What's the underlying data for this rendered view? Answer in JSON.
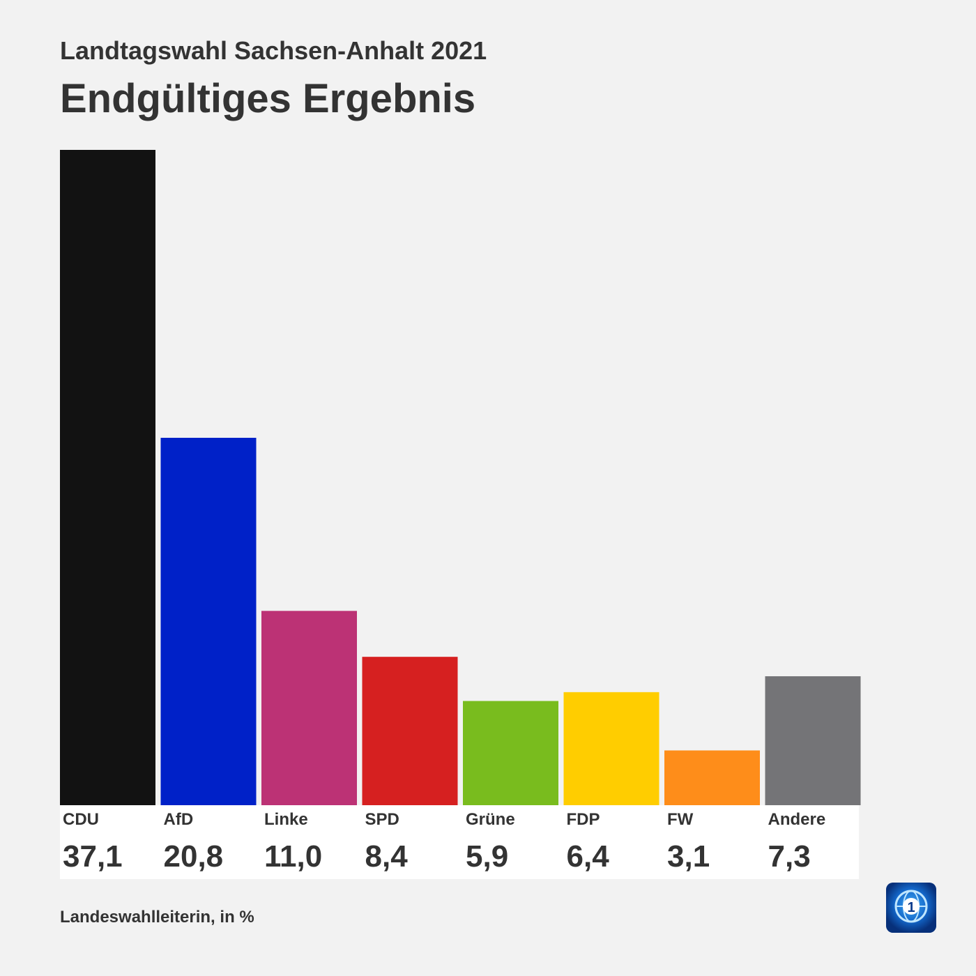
{
  "header": {
    "subtitle": "Landtagswahl Sachsen-Anhalt 2021",
    "title": "Endgültiges Ergebnis"
  },
  "footer": {
    "source": "Landeswahlleiterin, in %"
  },
  "logo": {
    "icon": "tagesschau-logo-icon",
    "text": "1"
  },
  "chart_data": {
    "type": "bar",
    "title": "Endgültiges Ergebnis",
    "subtitle": "Landtagswahl Sachsen-Anhalt 2021",
    "unit": "%",
    "categories": [
      "CDU",
      "AfD",
      "Linke",
      "SPD",
      "Grüne",
      "FDP",
      "FW",
      "Andere"
    ],
    "values": [
      37.1,
      20.8,
      11.0,
      8.4,
      5.9,
      6.4,
      3.1,
      7.3
    ],
    "value_labels": [
      "37,1",
      "20,8",
      "11,0",
      "8,4",
      "5,9",
      "6,4",
      "3,1",
      "7,3"
    ],
    "colors": [
      "#121212",
      "#0021c8",
      "#bc3275",
      "#d62020",
      "#79bc1e",
      "#ffcd00",
      "#fe8d1a",
      "#747477"
    ],
    "ylim": [
      0,
      37.1
    ],
    "grid": false,
    "legend": "none"
  }
}
